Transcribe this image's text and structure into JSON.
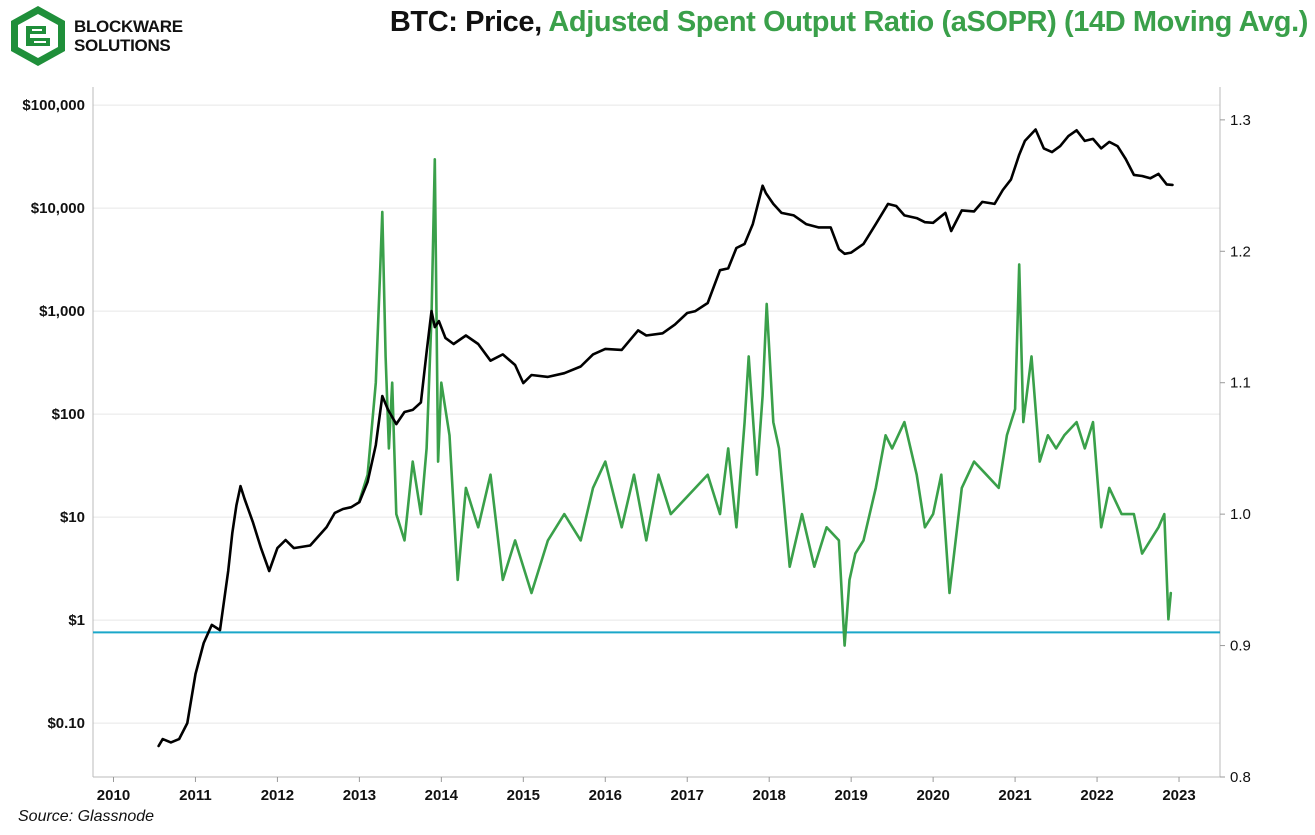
{
  "header": {
    "logo_line1": "BLOCKWARE",
    "logo_line2": "SOLUTIONS",
    "title_part1": "BTC: Price, ",
    "title_part2": "Adjusted Spent Output Ratio (aSOPR) (14D Moving Avg.)"
  },
  "footer": {
    "source": "Source: Glassnode"
  },
  "colors": {
    "price": "#000000",
    "asopr": "#3aa04a",
    "reference_line": "#1aa7c9",
    "title_accent": "#3aa04a"
  },
  "chart_data": {
    "type": "line",
    "x_axis": {
      "range": [
        2009.75,
        2023.5
      ],
      "ticks": [
        "2010",
        "2011",
        "2012",
        "2013",
        "2014",
        "2015",
        "2016",
        "2017",
        "2018",
        "2019",
        "2020",
        "2021",
        "2022",
        "2023"
      ]
    },
    "y_left": {
      "scale": "log",
      "range": [
        0.03,
        150000
      ],
      "ticks": [
        {
          "v": 0.1,
          "label": "$0.10"
        },
        {
          "v": 1,
          "label": "$1"
        },
        {
          "v": 10,
          "label": "$10"
        },
        {
          "v": 100,
          "label": "$100"
        },
        {
          "v": 1000,
          "label": "$1,000"
        },
        {
          "v": 10000,
          "label": "$10,000"
        },
        {
          "v": 100000,
          "label": "$100,000"
        }
      ]
    },
    "y_right": {
      "scale": "linear",
      "range": [
        0.8,
        1.325
      ],
      "ticks": [
        {
          "v": 0.8,
          "label": "0.8"
        },
        {
          "v": 0.9,
          "label": "0.9"
        },
        {
          "v": 1.0,
          "label": "1.0"
        },
        {
          "v": 1.1,
          "label": "1.1"
        },
        {
          "v": 1.2,
          "label": "1.2"
        },
        {
          "v": 1.3,
          "label": "1.3"
        }
      ]
    },
    "reference_line": {
      "axis": "right",
      "value": 0.91
    },
    "grid": "horizontal",
    "series": [
      {
        "axis": "left",
        "x": [
          2010.55,
          2010.6,
          2010.7,
          2010.8,
          2010.9,
          2011.0,
          2011.1,
          2011.2,
          2011.3,
          2011.4,
          2011.45,
          2011.5,
          2011.55,
          2011.6,
          2011.7,
          2011.8,
          2011.9,
          2012.0,
          2012.1,
          2012.2,
          2012.4,
          2012.6,
          2012.7,
          2012.8,
          2012.9,
          2013.0,
          2013.1,
          2013.2,
          2013.28,
          2013.35,
          2013.45,
          2013.55,
          2013.65,
          2013.75,
          2013.82,
          2013.88,
          2013.92,
          2013.97,
          2014.05,
          2014.15,
          2014.3,
          2014.45,
          2014.6,
          2014.75,
          2014.9,
          2015.0,
          2015.1,
          2015.3,
          2015.5,
          2015.7,
          2015.85,
          2016.0,
          2016.2,
          2016.4,
          2016.5,
          2016.7,
          2016.85,
          2017.0,
          2017.1,
          2017.25,
          2017.4,
          2017.5,
          2017.6,
          2017.7,
          2017.8,
          2017.85,
          2017.92,
          2017.96,
          2018.05,
          2018.15,
          2018.3,
          2018.45,
          2018.6,
          2018.75,
          2018.85,
          2018.92,
          2019.0,
          2019.15,
          2019.3,
          2019.45,
          2019.55,
          2019.65,
          2019.8,
          2019.9,
          2020.0,
          2020.15,
          2020.22,
          2020.35,
          2020.5,
          2020.6,
          2020.75,
          2020.85,
          2020.95,
          2021.05,
          2021.12,
          2021.25,
          2021.35,
          2021.45,
          2021.55,
          2021.65,
          2021.75,
          2021.85,
          2021.95,
          2022.05,
          2022.15,
          2022.25,
          2022.35,
          2022.45,
          2022.55,
          2022.65,
          2022.75,
          2022.85,
          2022.92
        ],
        "y": [
          0.06,
          0.07,
          0.065,
          0.07,
          0.1,
          0.3,
          0.6,
          0.9,
          0.8,
          3,
          7,
          13,
          20,
          15,
          9,
          5,
          3,
          5,
          6,
          5,
          5.3,
          8,
          11,
          12,
          12.5,
          14,
          22,
          50,
          150,
          110,
          80,
          105,
          110,
          130,
          400,
          1000,
          700,
          800,
          550,
          480,
          580,
          480,
          330,
          380,
          300,
          200,
          240,
          230,
          250,
          290,
          380,
          430,
          420,
          650,
          580,
          610,
          740,
          960,
          1000,
          1200,
          2500,
          2600,
          4100,
          4500,
          7000,
          10000,
          16500,
          14000,
          11000,
          9000,
          8500,
          7000,
          6500,
          6500,
          4000,
          3600,
          3700,
          4500,
          7000,
          11000,
          10500,
          8500,
          8000,
          7300,
          7200,
          9000,
          6000,
          9500,
          9300,
          11500,
          11000,
          15000,
          19000,
          33000,
          45000,
          58000,
          38000,
          35000,
          40000,
          50000,
          57000,
          45000,
          47000,
          38000,
          44000,
          40000,
          30000,
          21000,
          20500,
          19500,
          21500,
          17000,
          16800
        ]
      },
      {
        "axis": "right",
        "x": [
          2013.0,
          2013.1,
          2013.2,
          2013.25,
          2013.28,
          2013.32,
          2013.36,
          2013.4,
          2013.45,
          2013.55,
          2013.65,
          2013.75,
          2013.82,
          2013.88,
          2013.92,
          2013.96,
          2014.0,
          2014.1,
          2014.2,
          2014.3,
          2014.45,
          2014.6,
          2014.75,
          2014.9,
          2015.0,
          2015.1,
          2015.3,
          2015.5,
          2015.7,
          2015.85,
          2016.0,
          2016.2,
          2016.35,
          2016.5,
          2016.65,
          2016.8,
          2016.95,
          2017.1,
          2017.25,
          2017.4,
          2017.5,
          2017.6,
          2017.7,
          2017.75,
          2017.85,
          2017.92,
          2017.97,
          2018.05,
          2018.12,
          2018.25,
          2018.4,
          2018.55,
          2018.7,
          2018.85,
          2018.92,
          2018.98,
          2019.05,
          2019.15,
          2019.3,
          2019.42,
          2019.5,
          2019.65,
          2019.8,
          2019.9,
          2020.0,
          2020.1,
          2020.2,
          2020.35,
          2020.5,
          2020.65,
          2020.8,
          2020.9,
          2021.0,
          2021.05,
          2021.1,
          2021.2,
          2021.3,
          2021.4,
          2021.5,
          2021.6,
          2021.75,
          2021.85,
          2021.95,
          2022.05,
          2022.15,
          2022.3,
          2022.45,
          2022.55,
          2022.65,
          2022.75,
          2022.82,
          2022.87,
          2022.9
        ],
        "y": [
          1.01,
          1.03,
          1.1,
          1.18,
          1.23,
          1.12,
          1.05,
          1.1,
          1.0,
          0.98,
          1.04,
          1.0,
          1.05,
          1.15,
          1.27,
          1.04,
          1.1,
          1.06,
          0.95,
          1.02,
          0.99,
          1.03,
          0.95,
          0.98,
          0.96,
          0.94,
          0.98,
          1.0,
          0.98,
          1.02,
          1.04,
          0.99,
          1.03,
          0.98,
          1.03,
          1.0,
          1.01,
          1.02,
          1.03,
          1.0,
          1.05,
          0.99,
          1.07,
          1.12,
          1.03,
          1.09,
          1.16,
          1.07,
          1.05,
          0.96,
          1.0,
          0.96,
          0.99,
          0.98,
          0.9,
          0.95,
          0.97,
          0.98,
          1.02,
          1.06,
          1.05,
          1.07,
          1.03,
          0.99,
          1.0,
          1.03,
          0.94,
          1.02,
          1.04,
          1.03,
          1.02,
          1.06,
          1.08,
          1.19,
          1.07,
          1.12,
          1.04,
          1.06,
          1.05,
          1.06,
          1.07,
          1.05,
          1.07,
          0.99,
          1.02,
          1.0,
          1.0,
          0.97,
          0.98,
          0.99,
          1.0,
          0.92,
          0.94
        ]
      }
    ]
  }
}
